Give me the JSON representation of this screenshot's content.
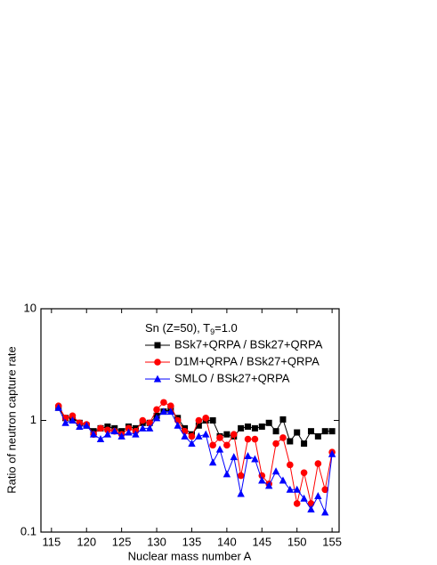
{
  "chart_data": {
    "type": "line",
    "annotation": {
      "text": "Sn (Z=50), T",
      "subscript": "9",
      "rest": "=1.0"
    },
    "x_label": "Nuclear mass number A",
    "y_label": "Ratio of neutron capture rate",
    "log_y": true,
    "legend": "upper-center",
    "x": [
      116,
      117,
      118,
      119,
      120,
      121,
      122,
      123,
      124,
      125,
      126,
      127,
      128,
      129,
      130,
      131,
      132,
      133,
      134,
      135,
      136,
      137,
      138,
      139,
      140,
      141,
      142,
      143,
      144,
      145,
      146,
      147,
      148,
      149,
      150,
      151,
      152,
      153,
      154,
      155
    ],
    "xlim": [
      113.5,
      156
    ],
    "xticks": [
      115,
      120,
      125,
      130,
      135,
      140,
      145,
      150,
      155
    ],
    "ylim": [
      0.1,
      10
    ],
    "yticks": [
      0.1,
      1,
      10
    ],
    "series": [
      {
        "name": "BSk7+QRPA / BSk27+QRPA",
        "color": "#000000",
        "marker": "square",
        "values": [
          1.3,
          1.05,
          1.05,
          0.95,
          0.9,
          0.8,
          0.85,
          0.88,
          0.85,
          0.8,
          0.88,
          0.85,
          0.95,
          0.95,
          1.1,
          1.2,
          1.25,
          1.05,
          0.85,
          0.75,
          0.9,
          1.0,
          1.0,
          0.72,
          0.75,
          0.72,
          0.85,
          0.88,
          0.85,
          0.88,
          0.95,
          0.8,
          1.02,
          0.65,
          0.78,
          0.62,
          0.8,
          0.72,
          0.8,
          0.8
        ]
      },
      {
        "name": "D1M+QRPA / BSk27+QRPA",
        "color": "#ff0000",
        "marker": "circle",
        "values": [
          1.35,
          1.05,
          1.1,
          0.95,
          0.92,
          0.75,
          0.85,
          0.82,
          0.8,
          0.75,
          0.85,
          0.8,
          1.0,
          0.95,
          1.25,
          1.45,
          1.35,
          1.0,
          0.8,
          0.72,
          1.0,
          1.05,
          0.6,
          0.7,
          0.6,
          0.75,
          0.32,
          0.68,
          0.68,
          0.32,
          0.27,
          0.62,
          0.7,
          0.4,
          0.18,
          0.34,
          0.18,
          0.41,
          0.24,
          0.52
        ]
      },
      {
        "name": "SMLO / BSk27+QRPA",
        "color": "#0000ff",
        "marker": "triangle",
        "values": [
          1.3,
          0.95,
          1.0,
          0.88,
          0.9,
          0.75,
          0.68,
          0.75,
          0.8,
          0.72,
          0.78,
          0.75,
          0.85,
          0.85,
          1.05,
          1.2,
          1.2,
          0.9,
          0.72,
          0.62,
          0.72,
          0.75,
          0.42,
          0.55,
          0.33,
          0.47,
          0.22,
          0.48,
          0.45,
          0.29,
          0.26,
          0.35,
          0.29,
          0.24,
          0.24,
          0.2,
          0.16,
          0.21,
          0.15,
          0.5
        ]
      }
    ]
  }
}
